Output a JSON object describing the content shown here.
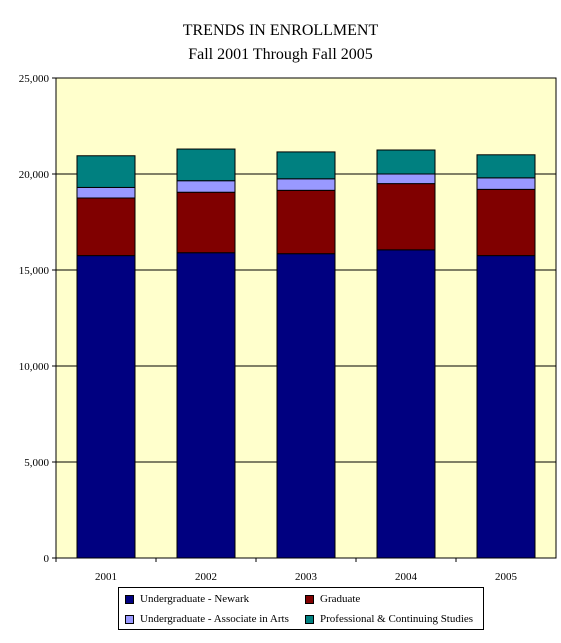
{
  "chart_data": {
    "type": "bar",
    "stacked": true,
    "title": "TRENDS IN ENROLLMENT",
    "subtitle": "Fall 2001 Through Fall 2005",
    "categories": [
      "2001",
      "2002",
      "2003",
      "2004",
      "2005"
    ],
    "ylim": [
      0,
      25000
    ],
    "yticks": [
      "0",
      "5,000",
      "10,000",
      "15,000",
      "20,000",
      "25,000"
    ],
    "grid": true,
    "plot_background": "#ffffcc",
    "legend_position": "bottom",
    "series": [
      {
        "name": "Undergraduate - Newark",
        "color": "#000080",
        "values": [
          15750,
          15900,
          15850,
          16050,
          15750
        ]
      },
      {
        "name": "Graduate",
        "color": "#800000",
        "values": [
          3000,
          3150,
          3300,
          3450,
          3450
        ]
      },
      {
        "name": "Undergraduate - Associate in Arts",
        "color": "#9999ff",
        "values": [
          550,
          600,
          600,
          500,
          600
        ]
      },
      {
        "name": "Professional & Continuing Studies",
        "color": "#008080",
        "values": [
          1650,
          1650,
          1400,
          1250,
          1200
        ]
      }
    ]
  }
}
